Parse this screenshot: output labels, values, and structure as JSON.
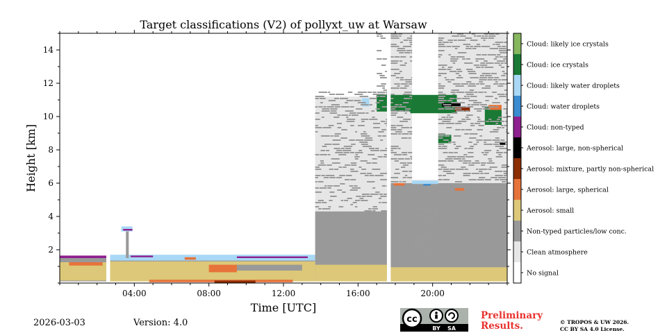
{
  "chart_data": {
    "type": "heatmap",
    "title": "Target classifications (V2) of pollyxt_uw at Warsaw",
    "xlabel": "Time [UTC]",
    "ylabel": "Height [km]",
    "xlim": [
      0,
      24
    ],
    "ylim": [
      0,
      15
    ],
    "x_ticks": [
      {
        "value": 4,
        "label": "04:00"
      },
      {
        "value": 8,
        "label": "08:00"
      },
      {
        "value": 12,
        "label": "12:00"
      },
      {
        "value": 16,
        "label": "16:00"
      },
      {
        "value": 20,
        "label": "20:00"
      }
    ],
    "y_ticks": [
      {
        "value": 2,
        "label": "2"
      },
      {
        "value": 4,
        "label": "4"
      },
      {
        "value": 6,
        "label": "6"
      },
      {
        "value": 8,
        "label": "8"
      },
      {
        "value": 10,
        "label": "10"
      },
      {
        "value": 12,
        "label": "12"
      },
      {
        "value": 14,
        "label": "14"
      }
    ],
    "classes": [
      {
        "id": 0,
        "label": "No signal",
        "color": "#ffffff"
      },
      {
        "id": 1,
        "label": "Clean atmosphere",
        "color": "#e6e6e6"
      },
      {
        "id": 2,
        "label": "Non-typed particles/low conc.",
        "color": "#999999"
      },
      {
        "id": 3,
        "label": "Aerosol: small",
        "color": "#dcc878"
      },
      {
        "id": 4,
        "label": "Aerosol: large, spherical",
        "color": "#e6733a"
      },
      {
        "id": 5,
        "label": "Aerosol: mixture, partly non-spherical",
        "color": "#8c2d04"
      },
      {
        "id": 6,
        "label": "Aerosol: large, non-spherical",
        "color": "#000000"
      },
      {
        "id": 7,
        "label": "Cloud: non-typed",
        "color": "#8e1f8e"
      },
      {
        "id": 8,
        "label": "Cloud: water droplets",
        "color": "#3a8bd0"
      },
      {
        "id": 9,
        "label": "Cloud: likely water droplets",
        "color": "#a8d8f5"
      },
      {
        "id": 10,
        "label": "Cloud: ice crystals",
        "color": "#1a7a35"
      },
      {
        "id": 11,
        "label": "Cloud: likely ice crystals",
        "color": "#86b65e"
      }
    ],
    "regions": [
      {
        "cls": 2,
        "t0": 0,
        "t1": 2.5,
        "h0": 0.1,
        "h1": 1.6
      },
      {
        "cls": 3,
        "t0": 0,
        "t1": 2.5,
        "h0": 0.15,
        "h1": 1.25
      },
      {
        "cls": 4,
        "t0": 0.5,
        "t1": 2.3,
        "h0": 1.05,
        "h1": 1.25
      },
      {
        "cls": 7,
        "t0": 0,
        "t1": 2.5,
        "h0": 1.5,
        "h1": 1.65
      },
      {
        "cls": 2,
        "t0": 2.7,
        "t1": 13.7,
        "h0": 0.2,
        "h1": 1.5
      },
      {
        "cls": 3,
        "t0": 2.7,
        "t1": 13.7,
        "h0": 0.1,
        "h1": 1.3
      },
      {
        "cls": 9,
        "t0": 2.7,
        "t1": 13.7,
        "h0": 1.35,
        "h1": 1.7
      },
      {
        "cls": 7,
        "t0": 3.8,
        "t1": 5.0,
        "h0": 1.55,
        "h1": 1.65
      },
      {
        "cls": 4,
        "t0": 6.7,
        "t1": 7.3,
        "h0": 1.4,
        "h1": 1.55
      },
      {
        "cls": 4,
        "t0": 8.0,
        "t1": 9.5,
        "h0": 0.65,
        "h1": 1.1
      },
      {
        "cls": 2,
        "t0": 9.5,
        "t1": 13.0,
        "h0": 0.75,
        "h1": 1.1
      },
      {
        "cls": 3,
        "t0": 5.5,
        "t1": 7.5,
        "h0": 0.8,
        "h1": 1.0
      },
      {
        "cls": 7,
        "t0": 9.5,
        "t1": 13.3,
        "h0": 1.5,
        "h1": 1.6
      },
      {
        "cls": 9,
        "t0": 3.3,
        "t1": 3.9,
        "h0": 3.1,
        "h1": 3.4
      },
      {
        "cls": 7,
        "t0": 3.4,
        "t1": 3.9,
        "h0": 3.15,
        "h1": 3.25
      },
      {
        "cls": 2,
        "t0": 3.55,
        "t1": 3.7,
        "h0": 1.5,
        "h1": 3.1
      },
      {
        "cls": 4,
        "t0": 4.8,
        "t1": 12.5,
        "h0": 0.05,
        "h1": 0.2
      },
      {
        "cls": 5,
        "t0": 8.3,
        "t1": 10.5,
        "h0": 0.0,
        "h1": 0.15
      },
      {
        "cls": 1,
        "t0": 13.7,
        "t1": 17.55,
        "h0": 1.5,
        "h1": 11.2
      },
      {
        "cls": 2,
        "t0": 13.7,
        "t1": 17.55,
        "h0": 1.5,
        "h1": 4.3
      },
      {
        "cls": 2,
        "t0": 13.7,
        "t1": 17.55,
        "h0": 0.3,
        "h1": 1.6
      },
      {
        "cls": 3,
        "t0": 13.7,
        "t1": 17.55,
        "h0": 0.1,
        "h1": 1.1
      },
      {
        "cls": 1,
        "t0": 17.75,
        "t1": 18.9,
        "h0": 1.5,
        "h1": 15.0
      },
      {
        "cls": 1,
        "t0": 20.3,
        "t1": 24,
        "h0": 1.5,
        "h1": 15.0
      },
      {
        "cls": 1,
        "t0": 18.9,
        "t1": 20.3,
        "h0": 1.5,
        "h1": 6.2
      },
      {
        "cls": 2,
        "t0": 17.75,
        "t1": 24,
        "h0": 0.4,
        "h1": 6.0
      },
      {
        "cls": 3,
        "t0": 17.75,
        "t1": 24,
        "h0": 0.1,
        "h1": 0.95
      },
      {
        "cls": 9,
        "t0": 18.9,
        "t1": 20.3,
        "h0": 5.95,
        "h1": 6.15
      },
      {
        "cls": 8,
        "t0": 19.5,
        "t1": 19.9,
        "h0": 5.85,
        "h1": 5.95
      },
      {
        "cls": 4,
        "t0": 17.9,
        "t1": 18.5,
        "h0": 5.85,
        "h1": 6.0
      },
      {
        "cls": 4,
        "t0": 21.2,
        "t1": 21.7,
        "h0": 5.55,
        "h1": 5.7
      },
      {
        "cls": 10,
        "t0": 17.0,
        "t1": 18.8,
        "h0": 10.3,
        "h1": 11.3
      },
      {
        "cls": 10,
        "t0": 18.8,
        "t1": 21.3,
        "h0": 10.2,
        "h1": 11.3
      },
      {
        "cls": 6,
        "t0": 20.5,
        "t1": 21.5,
        "h0": 10.6,
        "h1": 10.8
      },
      {
        "cls": 5,
        "t0": 21.2,
        "t1": 22.0,
        "h0": 10.3,
        "h1": 10.55
      },
      {
        "cls": 10,
        "t0": 22.8,
        "t1": 23.7,
        "h0": 9.5,
        "h1": 10.6
      },
      {
        "cls": 4,
        "t0": 23.0,
        "t1": 23.7,
        "h0": 10.4,
        "h1": 10.7
      },
      {
        "cls": 10,
        "t0": 20.3,
        "t1": 21.0,
        "h0": 8.4,
        "h1": 8.9
      },
      {
        "cls": 6,
        "t0": 23.6,
        "t1": 23.9,
        "h0": 8.3,
        "h1": 8.45
      },
      {
        "cls": 9,
        "t0": 16.2,
        "t1": 16.6,
        "h0": 10.6,
        "h1": 11.1
      }
    ],
    "gaps": [
      {
        "t0": 2.5,
        "t1": 2.7
      },
      {
        "t0": 17.55,
        "t1": 17.75
      }
    ]
  },
  "footer": {
    "date": "2026-03-03",
    "version": "Version: 4.0",
    "preliminary": [
      "Preliminary",
      "Results."
    ],
    "copyright": [
      "© TROPOS & UW 2026.",
      "CC BY SA 4.0 License."
    ],
    "cc_badge": {
      "cc": "cc",
      "by": "BY",
      "sa": "SA",
      "color": "#aab2ab"
    }
  }
}
